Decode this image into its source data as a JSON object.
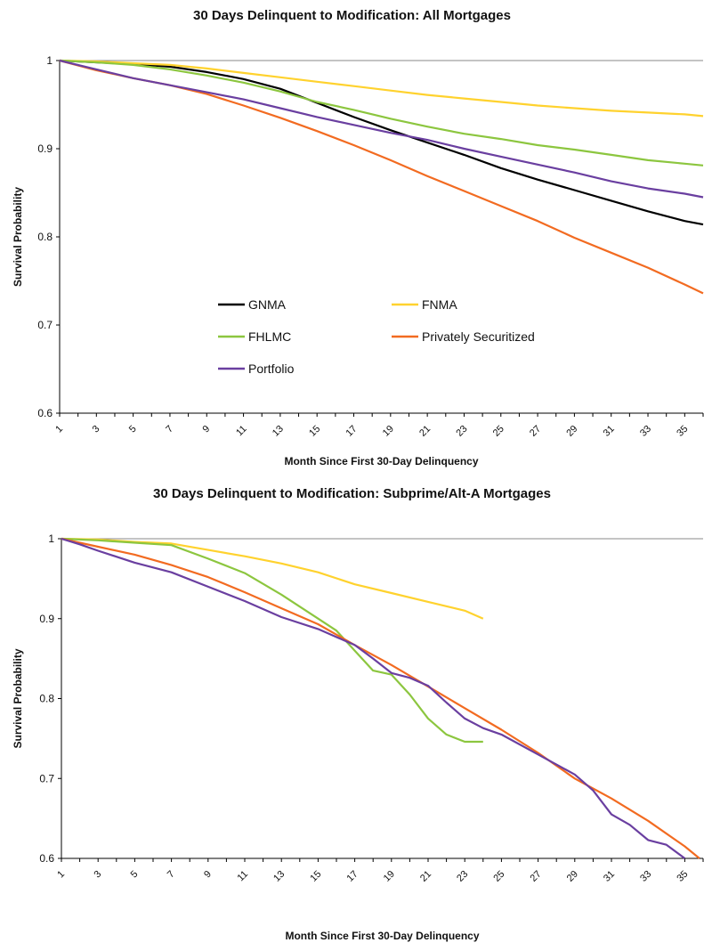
{
  "chart_data": [
    {
      "type": "line",
      "title": "30 Days Delinquent to Modification: All Mortgages",
      "xlabel": "Month Since First 30-Day Delinquency",
      "ylabel": "Survival Probability",
      "xlim": [
        1,
        36
      ],
      "ylim": [
        0.6,
        1
      ],
      "x_ticks": [
        1,
        3,
        5,
        7,
        9,
        11,
        13,
        15,
        17,
        19,
        21,
        23,
        25,
        27,
        29,
        31,
        33,
        35
      ],
      "y_ticks": [
        "0.6",
        "0.7",
        "0.8",
        "0.9",
        "1"
      ],
      "legend_placement": "center-left",
      "series": [
        {
          "name": "GNMA",
          "color": "#000000",
          "points": [
            [
              1,
              1.0
            ],
            [
              3,
              0.998
            ],
            [
              5,
              0.996
            ],
            [
              7,
              0.993
            ],
            [
              9,
              0.987
            ],
            [
              11,
              0.979
            ],
            [
              13,
              0.968
            ],
            [
              15,
              0.952
            ],
            [
              17,
              0.936
            ],
            [
              19,
              0.921
            ],
            [
              21,
              0.907
            ],
            [
              23,
              0.893
            ],
            [
              25,
              0.878
            ],
            [
              27,
              0.865
            ],
            [
              29,
              0.853
            ],
            [
              31,
              0.841
            ],
            [
              33,
              0.829
            ],
            [
              35,
              0.818
            ],
            [
              36,
              0.814
            ]
          ]
        },
        {
          "name": "FNMA",
          "color": "#FFD22E",
          "points": [
            [
              1,
              1.0
            ],
            [
              3,
              0.999
            ],
            [
              5,
              0.997
            ],
            [
              7,
              0.995
            ],
            [
              9,
              0.991
            ],
            [
              11,
              0.986
            ],
            [
              13,
              0.981
            ],
            [
              15,
              0.976
            ],
            [
              17,
              0.971
            ],
            [
              19,
              0.966
            ],
            [
              21,
              0.961
            ],
            [
              23,
              0.957
            ],
            [
              25,
              0.953
            ],
            [
              27,
              0.949
            ],
            [
              29,
              0.946
            ],
            [
              31,
              0.943
            ],
            [
              33,
              0.941
            ],
            [
              35,
              0.939
            ],
            [
              36,
              0.937
            ]
          ]
        },
        {
          "name": "FHLMC",
          "color": "#8CC63F",
          "points": [
            [
              1,
              1.0
            ],
            [
              3,
              0.998
            ],
            [
              5,
              0.995
            ],
            [
              7,
              0.99
            ],
            [
              9,
              0.983
            ],
            [
              11,
              0.975
            ],
            [
              13,
              0.965
            ],
            [
              15,
              0.953
            ],
            [
              17,
              0.944
            ],
            [
              19,
              0.934
            ],
            [
              21,
              0.925
            ],
            [
              23,
              0.917
            ],
            [
              25,
              0.911
            ],
            [
              27,
              0.904
            ],
            [
              29,
              0.899
            ],
            [
              31,
              0.893
            ],
            [
              33,
              0.887
            ],
            [
              35,
              0.883
            ],
            [
              36,
              0.881
            ]
          ]
        },
        {
          "name": "Privately Securitized",
          "color": "#F26B21",
          "points": [
            [
              1,
              1.0
            ],
            [
              3,
              0.989
            ],
            [
              5,
              0.98
            ],
            [
              7,
              0.972
            ],
            [
              9,
              0.962
            ],
            [
              11,
              0.949
            ],
            [
              13,
              0.935
            ],
            [
              15,
              0.92
            ],
            [
              17,
              0.904
            ],
            [
              19,
              0.887
            ],
            [
              21,
              0.869
            ],
            [
              23,
              0.852
            ],
            [
              25,
              0.835
            ],
            [
              27,
              0.818
            ],
            [
              29,
              0.799
            ],
            [
              31,
              0.782
            ],
            [
              33,
              0.765
            ],
            [
              35,
              0.746
            ],
            [
              36,
              0.736
            ]
          ]
        },
        {
          "name": "Portfolio",
          "color": "#6A3FA0",
          "points": [
            [
              1,
              1.0
            ],
            [
              3,
              0.99
            ],
            [
              5,
              0.98
            ],
            [
              7,
              0.972
            ],
            [
              9,
              0.964
            ],
            [
              11,
              0.956
            ],
            [
              13,
              0.946
            ],
            [
              15,
              0.936
            ],
            [
              17,
              0.927
            ],
            [
              19,
              0.918
            ],
            [
              21,
              0.91
            ],
            [
              23,
              0.9
            ],
            [
              25,
              0.891
            ],
            [
              27,
              0.882
            ],
            [
              29,
              0.873
            ],
            [
              31,
              0.863
            ],
            [
              33,
              0.855
            ],
            [
              35,
              0.849
            ],
            [
              36,
              0.845
            ]
          ]
        }
      ]
    },
    {
      "type": "line",
      "title": "30 Days Delinquent to Modification: Subprime/Alt-A Mortgages",
      "xlabel": "Month Since First 30-Day Delinquency",
      "ylabel": "Survival Probability",
      "xlim": [
        1,
        36
      ],
      "ylim": [
        0.6,
        1
      ],
      "x_ticks": [
        1,
        3,
        5,
        7,
        9,
        11,
        13,
        15,
        17,
        19,
        21,
        23,
        25,
        27,
        29,
        31,
        33,
        35
      ],
      "y_ticks": [
        "0.6",
        "0.7",
        "0.8",
        "0.9",
        "1"
      ],
      "series": [
        {
          "name": "FNMA",
          "color": "#FFD22E",
          "points": [
            [
              1,
              1.0
            ],
            [
              3,
              0.999
            ],
            [
              5,
              0.996
            ],
            [
              7,
              0.994
            ],
            [
              9,
              0.986
            ],
            [
              11,
              0.978
            ],
            [
              13,
              0.969
            ],
            [
              15,
              0.958
            ],
            [
              17,
              0.943
            ],
            [
              19,
              0.932
            ],
            [
              21,
              0.921
            ],
            [
              23,
              0.91
            ],
            [
              24,
              0.9
            ]
          ]
        },
        {
          "name": "FHLMC",
          "color": "#8CC63F",
          "points": [
            [
              1,
              1.0
            ],
            [
              3,
              0.998
            ],
            [
              5,
              0.995
            ],
            [
              7,
              0.992
            ],
            [
              9,
              0.975
            ],
            [
              11,
              0.957
            ],
            [
              13,
              0.93
            ],
            [
              15,
              0.9
            ],
            [
              16,
              0.885
            ],
            [
              17,
              0.86
            ],
            [
              18,
              0.835
            ],
            [
              19,
              0.83
            ],
            [
              20,
              0.805
            ],
            [
              21,
              0.775
            ],
            [
              22,
              0.755
            ],
            [
              23,
              0.746
            ],
            [
              24,
              0.746
            ]
          ]
        },
        {
          "name": "Privately Securitized",
          "color": "#F26B21",
          "points": [
            [
              1,
              1.0
            ],
            [
              3,
              0.99
            ],
            [
              5,
              0.98
            ],
            [
              7,
              0.967
            ],
            [
              9,
              0.952
            ],
            [
              11,
              0.933
            ],
            [
              13,
              0.913
            ],
            [
              15,
              0.893
            ],
            [
              17,
              0.867
            ],
            [
              19,
              0.842
            ],
            [
              21,
              0.815
            ],
            [
              23,
              0.788
            ],
            [
              25,
              0.761
            ],
            [
              27,
              0.732
            ],
            [
              29,
              0.7
            ],
            [
              31,
              0.675
            ],
            [
              33,
              0.647
            ],
            [
              35,
              0.615
            ],
            [
              35.8,
              0.6
            ]
          ]
        },
        {
          "name": "Portfolio",
          "color": "#6A3FA0",
          "points": [
            [
              1,
              1.0
            ],
            [
              2,
              0.993
            ],
            [
              3,
              0.985
            ],
            [
              5,
              0.97
            ],
            [
              7,
              0.958
            ],
            [
              9,
              0.94
            ],
            [
              11,
              0.922
            ],
            [
              13,
              0.902
            ],
            [
              15,
              0.887
            ],
            [
              17,
              0.867
            ],
            [
              18,
              0.85
            ],
            [
              19,
              0.832
            ],
            [
              20,
              0.826
            ],
            [
              21,
              0.816
            ],
            [
              22,
              0.795
            ],
            [
              23,
              0.775
            ],
            [
              24,
              0.763
            ],
            [
              25,
              0.755
            ],
            [
              27,
              0.73
            ],
            [
              29,
              0.705
            ],
            [
              30,
              0.685
            ],
            [
              31,
              0.655
            ],
            [
              32,
              0.642
            ],
            [
              33,
              0.623
            ],
            [
              34,
              0.617
            ],
            [
              35,
              0.6
            ]
          ]
        }
      ]
    }
  ]
}
